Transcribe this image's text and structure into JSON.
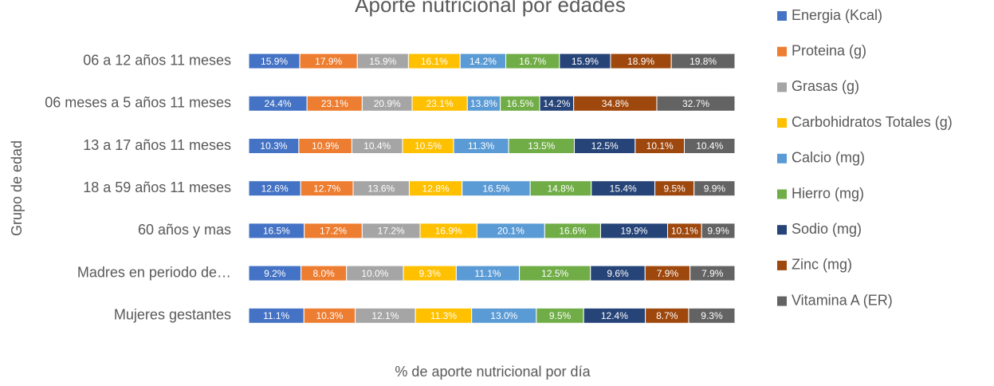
{
  "chart_data": {
    "type": "bar",
    "orientation": "horizontal",
    "stacking": "percent",
    "title": "Aporte nutricional por edades",
    "x_label": "% de aporte nutricional por día",
    "y_label": "Grupo de edad",
    "categories": [
      "06 a 12 años 11 meses",
      "06 meses a 5 años 11 meses",
      "13 a 17 años 11 meses",
      "18 a 59 años 11 meses",
      "60 años y mas",
      "Madres en periodo de…",
      "Mujeres gestantes"
    ],
    "legend": "right",
    "series": [
      {
        "name": "Energia (Kcal)",
        "color": "#4472c4",
        "values": [
          15.9,
          24.4,
          10.3,
          12.6,
          16.5,
          9.2,
          11.1
        ],
        "value_labels": [
          "15.9%",
          "24.4%",
          "10.3%",
          "12.6%",
          "16.5%",
          "9.2%",
          "11.1%"
        ]
      },
      {
        "name": "Proteina (g)",
        "color": "#ed7d31",
        "values": [
          17.9,
          23.1,
          10.9,
          12.7,
          17.2,
          8.0,
          10.3
        ],
        "value_labels": [
          "17.9%",
          "23.1%",
          "10.9%",
          "12.7%",
          "17.2%",
          "8.0%",
          "10.3%"
        ]
      },
      {
        "name": "Grasas (g)",
        "color": "#a5a5a5",
        "values": [
          15.9,
          20.9,
          10.4,
          13.6,
          17.2,
          10.0,
          12.1
        ],
        "value_labels": [
          "15.9%",
          "20.9%",
          "10.4%",
          "13.6%",
          "17.2%",
          "10.0%",
          "12.1%"
        ]
      },
      {
        "name": "Carbohidratos Totales (g)",
        "color": "#ffc000",
        "values": [
          16.1,
          23.1,
          10.5,
          12.8,
          16.9,
          9.3,
          11.3
        ],
        "value_labels": [
          "16.1%",
          "23.1%",
          "10.5%",
          "12.8%",
          "16.9%",
          "9.3%",
          "11.3%"
        ]
      },
      {
        "name": "Calcio (mg)",
        "color": "#5b9bd5",
        "values": [
          14.2,
          13.8,
          11.3,
          16.5,
          20.1,
          11.1,
          13.0
        ],
        "value_labels": [
          "14.2%",
          "13.8%",
          "11.3%",
          "16.5%",
          "20.1%",
          "11.1%",
          "13.0%"
        ]
      },
      {
        "name": "Hierro (mg)",
        "color": "#70ad47",
        "values": [
          16.7,
          16.5,
          13.5,
          14.8,
          16.6,
          12.5,
          9.5
        ],
        "value_labels": [
          "16.7%",
          "16.5%",
          "13.5%",
          "14.8%",
          "16.6%",
          "12.5%",
          "9.5%"
        ]
      },
      {
        "name": "Sodio (mg)",
        "color": "#264478",
        "values": [
          15.9,
          14.2,
          12.5,
          15.4,
          19.9,
          9.6,
          12.4
        ],
        "value_labels": [
          "15.9%",
          "14.2%",
          "12.5%",
          "15.4%",
          "19.9%",
          "9.6%",
          "12.4%"
        ]
      },
      {
        "name": "Zinc (mg)",
        "color": "#9e480e",
        "values": [
          18.9,
          34.8,
          10.1,
          9.5,
          10.1,
          7.9,
          8.7
        ],
        "value_labels": [
          "18.9%",
          "34.8%",
          "10.1%",
          "9.5%",
          "10.1%",
          "7.9%",
          "8.7%"
        ]
      },
      {
        "name": "Vitamina A (ER)",
        "color": "#636363",
        "values": [
          19.8,
          32.7,
          10.4,
          9.9,
          9.9,
          7.9,
          9.3
        ],
        "value_labels": [
          "19.8%",
          "32.7%",
          "10.4%",
          "9.9%",
          "9.9%",
          "7.9%",
          "9.3%"
        ]
      }
    ]
  }
}
